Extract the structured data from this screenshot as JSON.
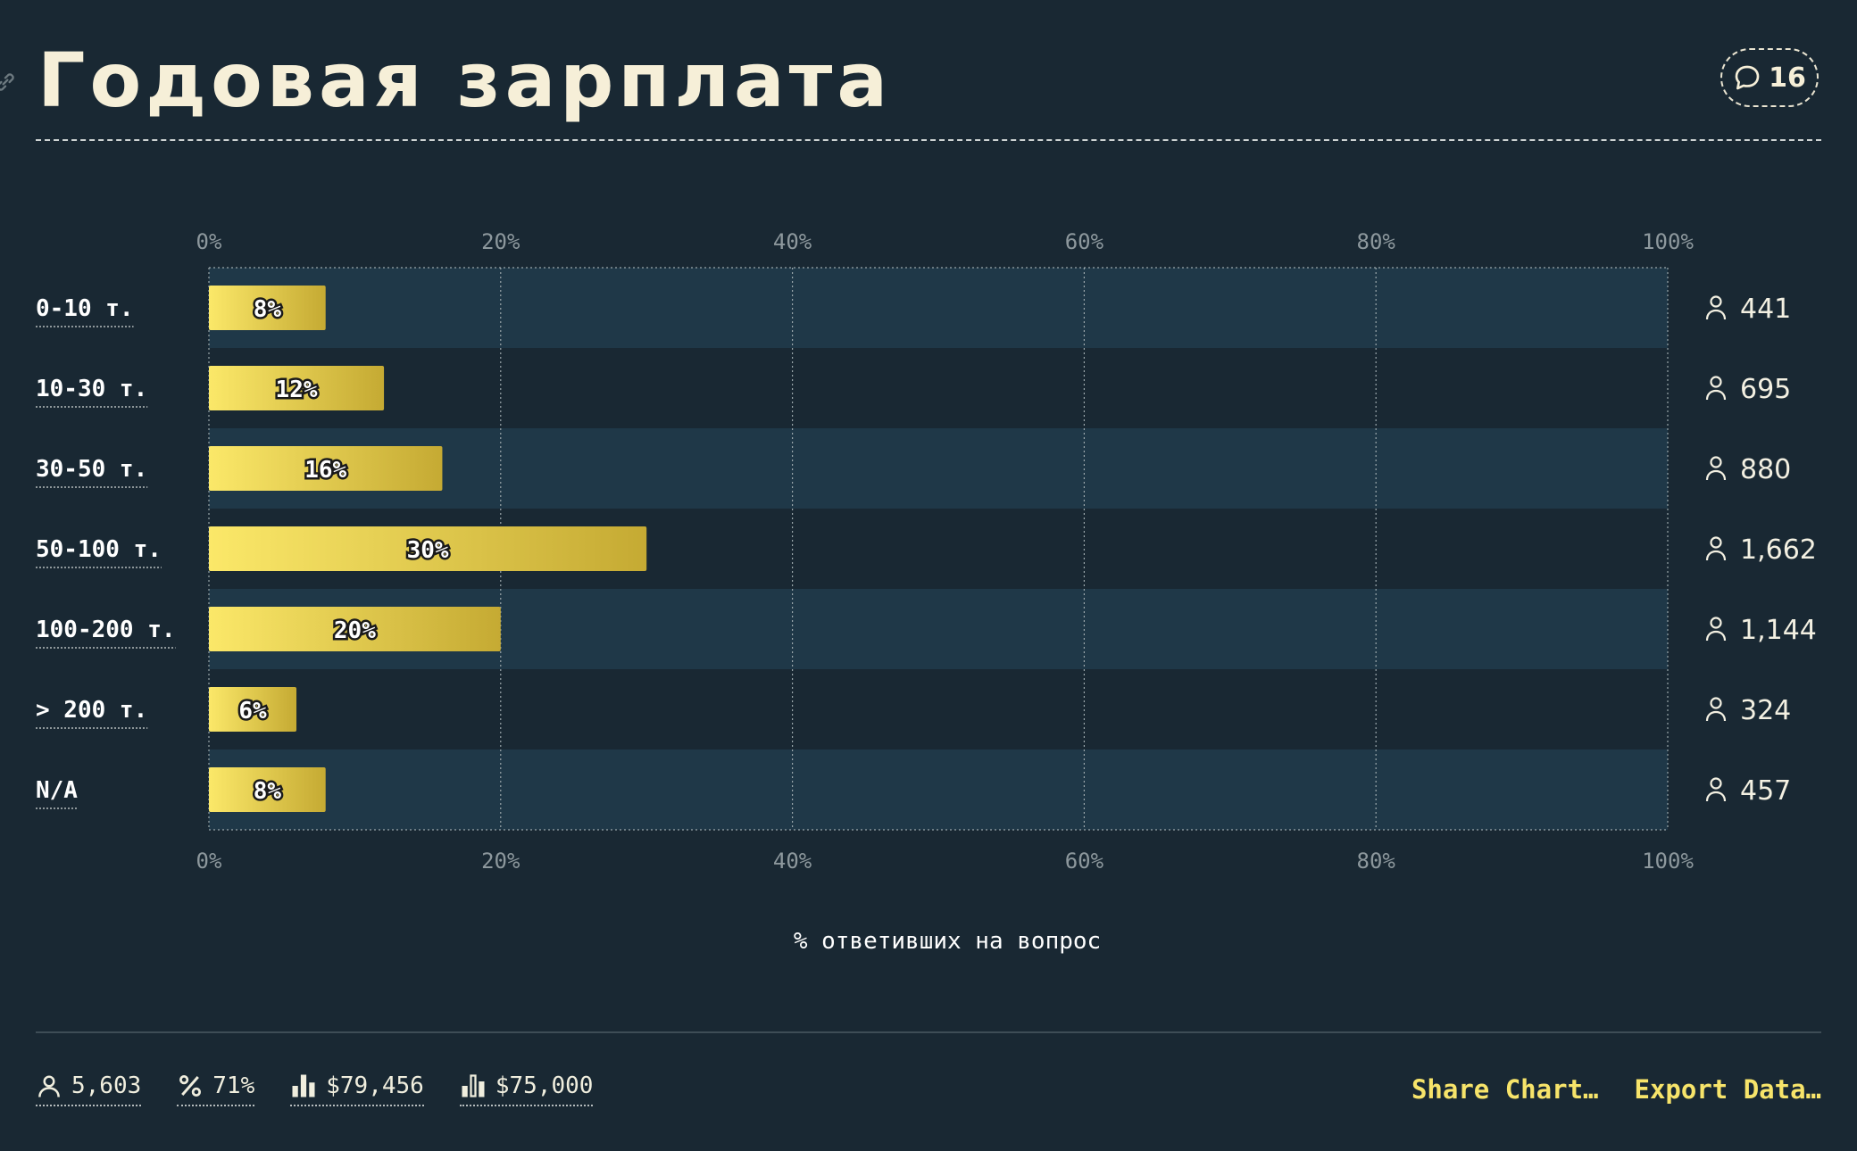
{
  "header": {
    "title": "Годовая зарплата",
    "comment_count": "16"
  },
  "chart_data": {
    "type": "bar",
    "orientation": "horizontal",
    "title": "Годовая зарплата",
    "xlabel": "% ответивших на вопрос",
    "ylabel": "",
    "xlim": [
      0,
      100
    ],
    "x_ticks": [
      "0%",
      "20%",
      "40%",
      "60%",
      "80%",
      "100%"
    ],
    "grid": true,
    "categories": [
      "0-10 т.",
      "10-30 т.",
      "30-50 т.",
      "50-100 т.",
      "100-200 т.",
      "> 200 т.",
      "N/A"
    ],
    "values": [
      8,
      12,
      16,
      30,
      20,
      6,
      8
    ],
    "value_labels": [
      "8%",
      "12%",
      "16%",
      "30%",
      "20%",
      "6%",
      "8%"
    ],
    "counts": [
      "441",
      "695",
      "880",
      "1,662",
      "1,144",
      "324",
      "457"
    ],
    "colors": {
      "bar_start": "#fbe869",
      "bar_end": "#c5aa33",
      "band": "#1f3848",
      "background": "#192833"
    }
  },
  "footer": {
    "stats": [
      {
        "icon": "person-icon",
        "value": "5,603"
      },
      {
        "icon": "percent-icon",
        "value": "71%"
      },
      {
        "icon": "bar-chart-icon",
        "value": "$79,456"
      },
      {
        "icon": "bar-chart-outline-icon",
        "value": "$75,000"
      }
    ],
    "share_label": "Share Chart…",
    "export_label": "Export Data…"
  }
}
